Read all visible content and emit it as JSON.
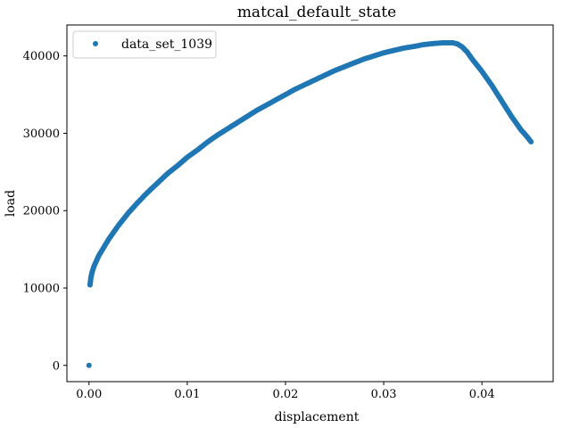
{
  "chart_data": {
    "type": "scatter",
    "title": "matcal_default_state",
    "xlabel": "displacement",
    "ylabel": "load",
    "xlim": [
      -0.00225,
      0.04725
    ],
    "ylim": [
      -2100,
      44000
    ],
    "xticks": [
      0.0,
      0.01,
      0.02,
      0.03,
      0.04
    ],
    "xtick_labels": [
      "0.00",
      "0.01",
      "0.02",
      "0.03",
      "0.04"
    ],
    "yticks": [
      0,
      10000,
      20000,
      30000,
      40000
    ],
    "ytick_labels": [
      "0",
      "10000",
      "20000",
      "30000",
      "40000"
    ],
    "grid": false,
    "legend_position": "upper-left",
    "series": [
      {
        "name": "data_set_1039",
        "color": "#1f77b4",
        "marker": "circle",
        "points": [
          [
            0.0,
            0
          ],
          [
            0.0001,
            10400
          ],
          [
            0.0002,
            11400
          ],
          [
            0.0003,
            12000
          ],
          [
            0.0005,
            12800
          ],
          [
            0.001,
            14200
          ],
          [
            0.002,
            16300
          ],
          [
            0.003,
            18100
          ],
          [
            0.004,
            19700
          ],
          [
            0.005,
            21100
          ],
          [
            0.006,
            22400
          ],
          [
            0.007,
            23600
          ],
          [
            0.008,
            24800
          ],
          [
            0.009,
            25800
          ],
          [
            0.01,
            26900
          ],
          [
            0.011,
            27800
          ],
          [
            0.012,
            28800
          ],
          [
            0.013,
            29700
          ],
          [
            0.014,
            30500
          ],
          [
            0.015,
            31300
          ],
          [
            0.016,
            32100
          ],
          [
            0.017,
            32900
          ],
          [
            0.018,
            33600
          ],
          [
            0.019,
            34300
          ],
          [
            0.02,
            35000
          ],
          [
            0.021,
            35700
          ],
          [
            0.022,
            36300
          ],
          [
            0.023,
            36900
          ],
          [
            0.024,
            37500
          ],
          [
            0.025,
            38100
          ],
          [
            0.026,
            38600
          ],
          [
            0.027,
            39100
          ],
          [
            0.028,
            39600
          ],
          [
            0.029,
            40000
          ],
          [
            0.03,
            40400
          ],
          [
            0.031,
            40700
          ],
          [
            0.032,
            41000
          ],
          [
            0.033,
            41200
          ],
          [
            0.034,
            41450
          ],
          [
            0.035,
            41600
          ],
          [
            0.036,
            41700
          ],
          [
            0.037,
            41700
          ],
          [
            0.0375,
            41550
          ],
          [
            0.038,
            41150
          ],
          [
            0.0385,
            40500
          ],
          [
            0.039,
            39600
          ],
          [
            0.0395,
            38800
          ],
          [
            0.04,
            38000
          ],
          [
            0.0405,
            37100
          ],
          [
            0.041,
            36200
          ],
          [
            0.0415,
            35200
          ],
          [
            0.042,
            34200
          ],
          [
            0.0425,
            33200
          ],
          [
            0.043,
            32200
          ],
          [
            0.0435,
            31300
          ],
          [
            0.044,
            30400
          ],
          [
            0.0445,
            29700
          ],
          [
            0.045,
            28900
          ]
        ]
      }
    ]
  }
}
